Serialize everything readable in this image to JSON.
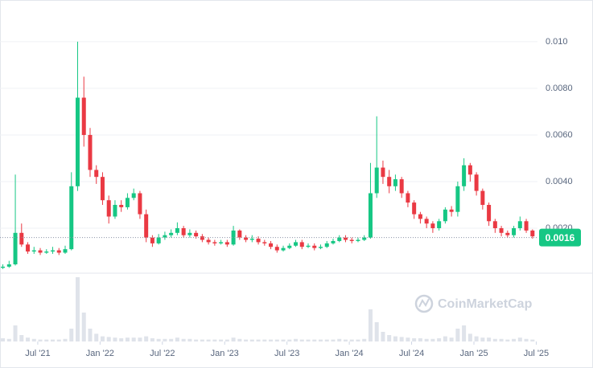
{
  "chart_data": {
    "type": "candlestick",
    "watermark": "CoinMarketCap",
    "up_color": "#16c784",
    "down_color": "#ea3943",
    "volume_color": "#dfe3ea",
    "grid": true,
    "xlim": [
      2021.197,
      2025.51
    ],
    "ylim": [
      7e-05,
      0.01172
    ],
    "vlim": [
      0,
      100
    ],
    "xticks": [
      {
        "value": 2021.5,
        "label": "Jul '21"
      },
      {
        "value": 2022.0,
        "label": "Jan '22"
      },
      {
        "value": 2022.5,
        "label": "Jul '22"
      },
      {
        "value": 2023.0,
        "label": "Jan '23"
      },
      {
        "value": 2023.5,
        "label": "Jul '23"
      },
      {
        "value": 2024.0,
        "label": "Jan '24"
      },
      {
        "value": 2024.5,
        "label": "Jul '24"
      },
      {
        "value": 2025.0,
        "label": "Jan '25"
      },
      {
        "value": 2025.5,
        "label": "Jul '25"
      }
    ],
    "yticks": [
      {
        "value": 0.01,
        "label": "0.010"
      },
      {
        "value": 0.008,
        "label": "0.0080"
      },
      {
        "value": 0.006,
        "label": "0.0060"
      },
      {
        "value": 0.004,
        "label": "0.0040"
      },
      {
        "value": 0.002,
        "label": "0.0020"
      }
    ],
    "last_price": {
      "value": 0.0016,
      "label": "0.0016"
    },
    "candles": {
      "t": [
        2021.22,
        2021.27,
        2021.32,
        2021.37,
        2021.42,
        2021.47,
        2021.52,
        2021.57,
        2021.62,
        2021.67,
        2021.72,
        2021.77,
        2021.82,
        2021.87,
        2021.92,
        2021.97,
        2022.02,
        2022.07,
        2022.12,
        2022.17,
        2022.22,
        2022.27,
        2022.32,
        2022.37,
        2022.42,
        2022.47,
        2022.52,
        2022.57,
        2022.62,
        2022.67,
        2022.72,
        2022.77,
        2022.82,
        2022.87,
        2022.92,
        2022.97,
        2023.02,
        2023.07,
        2023.12,
        2023.17,
        2023.22,
        2023.27,
        2023.32,
        2023.37,
        2023.42,
        2023.47,
        2023.52,
        2023.57,
        2023.62,
        2023.67,
        2023.72,
        2023.77,
        2023.82,
        2023.87,
        2023.92,
        2023.97,
        2024.02,
        2024.07,
        2024.12,
        2024.17,
        2024.22,
        2024.27,
        2024.32,
        2024.37,
        2024.42,
        2024.47,
        2024.52,
        2024.57,
        2024.62,
        2024.67,
        2024.72,
        2024.77,
        2024.82,
        2024.87,
        2024.92,
        2024.97,
        2025.02,
        2025.07,
        2025.12,
        2025.17,
        2025.22,
        2025.27,
        2025.32,
        2025.37,
        2025.42,
        2025.47
      ],
      "open": [
        0.0003,
        0.00035,
        0.00045,
        0.0018,
        0.0013,
        0.001,
        0.00105,
        0.00095,
        0.001,
        0.00105,
        0.00095,
        0.0011,
        0.0038,
        0.0076,
        0.006,
        0.0045,
        0.0042,
        0.0032,
        0.0025,
        0.003,
        0.0029,
        0.0033,
        0.0035,
        0.0026,
        0.0016,
        0.00135,
        0.0016,
        0.0017,
        0.0018,
        0.002,
        0.0017,
        0.0018,
        0.00165,
        0.0015,
        0.0014,
        0.00135,
        0.0014,
        0.0013,
        0.0019,
        0.0016,
        0.0015,
        0.00155,
        0.0014,
        0.00135,
        0.0012,
        0.00105,
        0.00115,
        0.00125,
        0.0014,
        0.0012,
        0.00125,
        0.00115,
        0.0012,
        0.00135,
        0.00145,
        0.0016,
        0.0015,
        0.00145,
        0.0015,
        0.0016,
        0.0035,
        0.0046,
        0.0042,
        0.0038,
        0.0041,
        0.0035,
        0.0031,
        0.0026,
        0.0024,
        0.0022,
        0.002,
        0.0023,
        0.0028,
        0.0027,
        0.0038,
        0.0047,
        0.0043,
        0.0036,
        0.003,
        0.0023,
        0.002,
        0.0018,
        0.0017,
        0.002,
        0.0023,
        0.0019
      ],
      "high": [
        0.00045,
        0.0006,
        0.0043,
        0.0022,
        0.0014,
        0.0012,
        0.00115,
        0.0011,
        0.0012,
        0.00115,
        0.00125,
        0.0044,
        0.01,
        0.0085,
        0.0063,
        0.0047,
        0.0044,
        0.0034,
        0.0032,
        0.0032,
        0.0035,
        0.0037,
        0.0036,
        0.0028,
        0.0017,
        0.00175,
        0.00185,
        0.00195,
        0.00225,
        0.0021,
        0.00195,
        0.0019,
        0.00175,
        0.0016,
        0.0015,
        0.0015,
        0.0015,
        0.0021,
        0.00195,
        0.0017,
        0.0017,
        0.00165,
        0.0015,
        0.00145,
        0.0013,
        0.00125,
        0.00135,
        0.0015,
        0.0015,
        0.00135,
        0.00135,
        0.0013,
        0.00145,
        0.00155,
        0.0017,
        0.0017,
        0.0016,
        0.0016,
        0.0017,
        0.0048,
        0.0068,
        0.0049,
        0.0045,
        0.0043,
        0.0042,
        0.0036,
        0.0032,
        0.0027,
        0.0025,
        0.0023,
        0.0024,
        0.0029,
        0.00295,
        0.004,
        0.005,
        0.0048,
        0.0044,
        0.0037,
        0.0031,
        0.0024,
        0.0021,
        0.0019,
        0.0021,
        0.0025,
        0.0024,
        0.00195
      ],
      "low": [
        0.00025,
        0.0003,
        0.0004,
        0.0012,
        0.0009,
        0.0009,
        0.00085,
        0.0009,
        0.0009,
        0.00085,
        0.0009,
        0.00105,
        0.0036,
        0.0055,
        0.0042,
        0.0039,
        0.003,
        0.0022,
        0.0024,
        0.0027,
        0.0028,
        0.0032,
        0.0024,
        0.0014,
        0.0012,
        0.0013,
        0.0015,
        0.0016,
        0.0017,
        0.0016,
        0.0016,
        0.00155,
        0.0014,
        0.0013,
        0.00125,
        0.0013,
        0.0012,
        0.00125,
        0.0015,
        0.0014,
        0.0014,
        0.0013,
        0.00125,
        0.0011,
        0.00095,
        0.001,
        0.0011,
        0.0012,
        0.0011,
        0.00115,
        0.00105,
        0.0011,
        0.00115,
        0.0013,
        0.0014,
        0.0014,
        0.00135,
        0.0014,
        0.00145,
        0.00155,
        0.0033,
        0.0039,
        0.0035,
        0.0036,
        0.0033,
        0.0029,
        0.0024,
        0.0022,
        0.002,
        0.0018,
        0.0019,
        0.0022,
        0.0025,
        0.0025,
        0.0036,
        0.004,
        0.0034,
        0.0028,
        0.0021,
        0.0018,
        0.00165,
        0.0016,
        0.0016,
        0.0019,
        0.0018,
        0.00155
      ],
      "close": [
        0.00035,
        0.00045,
        0.0018,
        0.0013,
        0.001,
        0.00105,
        0.00095,
        0.001,
        0.00105,
        0.00095,
        0.0011,
        0.0038,
        0.0076,
        0.006,
        0.0045,
        0.0042,
        0.0032,
        0.0025,
        0.003,
        0.0029,
        0.0033,
        0.0035,
        0.0026,
        0.0016,
        0.00135,
        0.0016,
        0.0017,
        0.0018,
        0.002,
        0.0017,
        0.0018,
        0.00165,
        0.0015,
        0.0014,
        0.00135,
        0.0014,
        0.0013,
        0.0019,
        0.0016,
        0.0015,
        0.00155,
        0.0014,
        0.00135,
        0.0012,
        0.00105,
        0.00115,
        0.00125,
        0.0014,
        0.0012,
        0.00125,
        0.00115,
        0.0012,
        0.00135,
        0.00145,
        0.0016,
        0.0015,
        0.00145,
        0.0015,
        0.0016,
        0.0035,
        0.0046,
        0.0042,
        0.0038,
        0.0041,
        0.0035,
        0.0031,
        0.0026,
        0.0024,
        0.0022,
        0.002,
        0.0023,
        0.0028,
        0.0027,
        0.0038,
        0.0047,
        0.0043,
        0.0036,
        0.003,
        0.0023,
        0.002,
        0.0018,
        0.0017,
        0.002,
        0.0023,
        0.0019,
        0.00165
      ],
      "volume": [
        5,
        4,
        25,
        10,
        6,
        4,
        3,
        3,
        3,
        3,
        4,
        20,
        100,
        45,
        20,
        12,
        8,
        7,
        6,
        5,
        6,
        6,
        6,
        8,
        5,
        4,
        4,
        4,
        6,
        4,
        4,
        3,
        3,
        3,
        3,
        3,
        3,
        6,
        4,
        3,
        3,
        3,
        3,
        3,
        3,
        3,
        3,
        4,
        3,
        3,
        3,
        3,
        3,
        3,
        4,
        3,
        3,
        3,
        4,
        50,
        30,
        15,
        10,
        8,
        7,
        6,
        5,
        5,
        4,
        4,
        5,
        8,
        6,
        20,
        25,
        12,
        8,
        6,
        6,
        4,
        4,
        3,
        4,
        6,
        4,
        3
      ]
    }
  }
}
